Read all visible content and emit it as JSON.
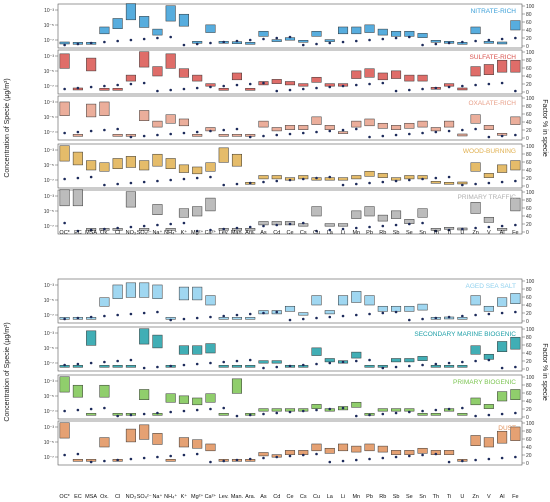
{
  "figure": {
    "left_ylabel": "Concentration of Specie (µg/m³)",
    "right_ylabel": "Factor % in specie"
  },
  "species": [
    "OC*",
    "EC",
    "MSA",
    "Ox.",
    "Cl",
    "NO3",
    "SO4",
    "Na",
    "NH4",
    "K",
    "Mg",
    "Ca",
    "Lev.",
    "Man.",
    "Ara.",
    "As",
    "Cd",
    "Ce",
    "Cs",
    "Cu",
    "La",
    "Li",
    "Mn",
    "Pb",
    "Rb",
    "Sb",
    "Se",
    "Sn",
    "Th",
    "Ti",
    "U",
    "Zn",
    "V",
    "Al",
    "Fe"
  ],
  "species_labels": [
    "OC*",
    "EC",
    "MSA",
    "Ox.",
    "Cl",
    "NO₃",
    "SO₄²⁻",
    "Na⁺",
    "NH₄⁺",
    "K⁺",
    "Mg²⁺",
    "Ca²⁺",
    "Lev.",
    "Man.",
    "Ara.",
    "As",
    "Cd",
    "Ce",
    "Cs",
    "Cu",
    "La",
    "Li",
    "Mn",
    "Pb",
    "Rb",
    "Sb",
    "Se",
    "Sn",
    "Th",
    "Ti",
    "U",
    "Zn",
    "V",
    "Al",
    "Fe"
  ],
  "axis": {
    "conc_ticks": [
      "10⁻³",
      "10⁻⁵",
      "10⁻⁷"
    ],
    "pct_ticks": [
      "100",
      "80",
      "60",
      "40",
      "20",
      "0"
    ]
  },
  "chart_data": [
    {
      "type": "bar",
      "title": "NITRATE-RICH",
      "color": "#3a9fd8",
      "categories": [
        "OC*",
        "EC",
        "MSA",
        "Ox.",
        "Cl",
        "NO3",
        "SO4",
        "Na",
        "NH4",
        "K",
        "Mg",
        "Ca",
        "Lev.",
        "Man.",
        "Ara.",
        "As",
        "Cd",
        "Ce",
        "Cs",
        "Cu",
        "La",
        "Li",
        "Mn",
        "Pb",
        "Rb",
        "Sb",
        "Se",
        "Sn",
        "Th",
        "Ti",
        "U",
        "Zn",
        "V",
        "Al",
        "Fe"
      ],
      "series": [
        {
          "values": [
            3,
            2,
            2,
            40,
            60,
            95,
            65,
            35,
            90,
            70,
            5,
            45,
            5,
            4,
            2,
            30,
            10,
            15,
            8,
            30,
            10,
            40,
            40,
            45,
            35,
            30,
            30,
            25,
            8,
            5,
            2,
            40,
            5,
            3,
            55
          ]
        }
      ],
      "ylabel": "Concentration of Specie (µg/m³)",
      "ylim": [
        0,
        100
      ]
    },
    {
      "type": "bar",
      "title": "SULFATE-RICH",
      "color": "#d9534f",
      "categories": [
        "OC*",
        "EC",
        "MSA",
        "Ox.",
        "Cl",
        "NO3",
        "SO4",
        "Na",
        "NH4",
        "K",
        "Mg",
        "Ca",
        "Lev.",
        "Man.",
        "Ara.",
        "As",
        "Cd",
        "Ce",
        "Cs",
        "Cu",
        "La",
        "Li",
        "Mn",
        "Pb",
        "Rb",
        "Sb",
        "Se",
        "Sn",
        "Th",
        "Ti",
        "U",
        "Zn",
        "V",
        "Al",
        "Fe"
      ],
      "series": [
        {
          "values": [
            85,
            3,
            75,
            2,
            2,
            35,
            90,
            55,
            85,
            50,
            35,
            15,
            2,
            40,
            2,
            20,
            25,
            20,
            15,
            30,
            15,
            15,
            45,
            50,
            40,
            45,
            35,
            35,
            5,
            15,
            3,
            55,
            60,
            70,
            70
          ]
        }
      ],
      "ylim": [
        0,
        100
      ]
    },
    {
      "type": "bar",
      "title": "OXALATE-RICH",
      "color": "#e8a08a",
      "categories": [
        "OC*",
        "EC",
        "MSA",
        "Ox.",
        "Cl",
        "NO3",
        "SO4",
        "Na",
        "NH4",
        "K",
        "Mg",
        "Ca",
        "Lev.",
        "Man.",
        "Ara.",
        "As",
        "Cd",
        "Ce",
        "Cs",
        "Cu",
        "La",
        "Li",
        "Mn",
        "Pb",
        "Rb",
        "Sb",
        "Se",
        "Sn",
        "Th",
        "Ti",
        "U",
        "Zn",
        "V",
        "Al",
        "Fe"
      ],
      "series": [
        {
          "values": [
            80,
            2,
            75,
            80,
            2,
            2,
            60,
            35,
            50,
            40,
            2,
            20,
            2,
            2,
            2,
            35,
            20,
            25,
            25,
            45,
            25,
            10,
            35,
            40,
            30,
            25,
            30,
            35,
            20,
            35,
            3,
            50,
            25,
            5,
            45
          ]
        }
      ],
      "ylim": [
        0,
        100
      ]
    },
    {
      "type": "bar",
      "title": "WOOD-BURNING",
      "color": "#e0b050",
      "categories": [
        "OC*",
        "EC",
        "MSA",
        "Ox.",
        "Cl",
        "NO3",
        "SO4",
        "Na",
        "NH4",
        "K",
        "Mg",
        "Ca",
        "Lev.",
        "Man.",
        "Ara.",
        "As",
        "Cd",
        "Ce",
        "Cs",
        "Cu",
        "La",
        "Li",
        "Mn",
        "Pb",
        "Rb",
        "Sb",
        "Se",
        "Sn",
        "Th",
        "Ti",
        "U",
        "Zn",
        "V",
        "Al",
        "Fe"
      ],
      "series": [
        {
          "values": [
            90,
            75,
            55,
            50,
            60,
            65,
            55,
            70,
            60,
            45,
            40,
            50,
            85,
            70,
            2,
            20,
            20,
            15,
            20,
            15,
            15,
            15,
            20,
            30,
            25,
            15,
            20,
            20,
            5,
            2,
            3,
            50,
            25,
            45,
            55
          ]
        }
      ],
      "ylim": [
        0,
        100
      ]
    },
    {
      "type": "bar",
      "title": "PRIMARY TRAFFIC",
      "color": "#b0b0b0",
      "categories": [
        "OC*",
        "EC",
        "MSA",
        "Ox.",
        "Cl",
        "NO3",
        "SO4",
        "Na",
        "NH4",
        "K",
        "Mg",
        "Ca",
        "Lev.",
        "Man.",
        "Ara.",
        "As",
        "Cd",
        "Ce",
        "Cs",
        "Cu",
        "La",
        "Li",
        "Mn",
        "Pb",
        "Rb",
        "Sb",
        "Se",
        "Sn",
        "Th",
        "Ti",
        "U",
        "Zn",
        "V",
        "Al",
        "Fe"
      ],
      "series": [
        {
          "values": [
            95,
            95,
            2,
            2,
            2,
            90,
            2,
            60,
            2,
            50,
            55,
            75,
            2,
            2,
            2,
            20,
            20,
            20,
            15,
            55,
            15,
            15,
            45,
            55,
            35,
            45,
            25,
            50,
            2,
            5,
            3,
            65,
            30,
            2,
            75
          ]
        }
      ],
      "ylim": [
        0,
        100
      ]
    },
    {
      "type": "bar",
      "title": "AGED SEA SALT",
      "color": "#8fd0ee",
      "categories": [
        "OC*",
        "EC",
        "MSA",
        "Ox.",
        "Cl",
        "NO3",
        "SO4",
        "Na",
        "NH4",
        "K",
        "Mg",
        "Ca",
        "Lev.",
        "Man.",
        "Ara.",
        "As",
        "Cd",
        "Ce",
        "Cs",
        "Cu",
        "La",
        "Li",
        "Mn",
        "Pb",
        "Rb",
        "Sb",
        "Se",
        "Sn",
        "Th",
        "Ti",
        "U",
        "Zn",
        "V",
        "Al",
        "Fe"
      ],
      "series": [
        {
          "values": [
            2,
            2,
            2,
            50,
            80,
            85,
            85,
            80,
            2,
            75,
            75,
            55,
            2,
            2,
            2,
            20,
            20,
            30,
            15,
            55,
            20,
            55,
            65,
            55,
            30,
            30,
            30,
            35,
            2,
            3,
            2,
            55,
            30,
            50,
            60
          ]
        }
      ],
      "ylim": [
        0,
        100
      ]
    },
    {
      "type": "bar",
      "title": "SECONDARY MARINE BIOGENIC",
      "color": "#20a0a8",
      "categories": [
        "OC*",
        "EC",
        "MSA",
        "Ox.",
        "Cl",
        "NO3",
        "SO4",
        "Na",
        "NH4",
        "K",
        "Mg",
        "Ca",
        "Lev.",
        "Man.",
        "Ara.",
        "As",
        "Cd",
        "Ce",
        "Cs",
        "Cu",
        "La",
        "Li",
        "Mn",
        "Pb",
        "Rb",
        "Sb",
        "Se",
        "Sn",
        "Th",
        "Ti",
        "U",
        "Zn",
        "V",
        "Al",
        "Fe"
      ],
      "series": [
        {
          "values": [
            2,
            2,
            85,
            2,
            2,
            2,
            90,
            75,
            2,
            50,
            50,
            55,
            2,
            2,
            2,
            15,
            15,
            2,
            2,
            45,
            20,
            15,
            35,
            2,
            2,
            20,
            20,
            25,
            2,
            2,
            2,
            50,
            30,
            60,
            70
          ]
        }
      ],
      "ylim": [
        0,
        100
      ]
    },
    {
      "type": "bar",
      "title": "PRIMARY BIOGENIC",
      "color": "#7cc552",
      "categories": [
        "OC*",
        "EC",
        "MSA",
        "Ox.",
        "Cl",
        "NO3",
        "SO4",
        "Na",
        "NH4",
        "K",
        "Mg",
        "Ca",
        "Lev.",
        "Man.",
        "Ara.",
        "As",
        "Cd",
        "Ce",
        "Cs",
        "Cu",
        "La",
        "Li",
        "Mn",
        "Pb",
        "Rb",
        "Sb",
        "Se",
        "Sn",
        "Th",
        "Ti",
        "U",
        "Zn",
        "V",
        "Al",
        "Fe"
      ],
      "series": [
        {
          "values": [
            90,
            70,
            2,
            70,
            2,
            2,
            60,
            2,
            50,
            45,
            40,
            50,
            2,
            85,
            2,
            15,
            15,
            15,
            15,
            25,
            15,
            20,
            30,
            2,
            15,
            15,
            15,
            2,
            2,
            15,
            2,
            40,
            25,
            55,
            60
          ]
        }
      ],
      "ylim": [
        0,
        100
      ]
    },
    {
      "type": "bar",
      "title": "DUST",
      "color": "#e0905a",
      "categories": [
        "OC*",
        "EC",
        "MSA",
        "Ox.",
        "Cl",
        "NO3",
        "SO4",
        "Na",
        "NH4",
        "K",
        "Mg",
        "Ca",
        "Lev.",
        "Man.",
        "Ara.",
        "As",
        "Cd",
        "Ce",
        "Cs",
        "Cu",
        "La",
        "Li",
        "Mn",
        "Pb",
        "Rb",
        "Sb",
        "Se",
        "Sn",
        "Th",
        "Ti",
        "U",
        "Zn",
        "V",
        "Al",
        "Fe"
      ],
      "series": [
        {
          "values": [
            90,
            2,
            2,
            55,
            2,
            75,
            85,
            65,
            2,
            55,
            50,
            40,
            2,
            2,
            2,
            20,
            15,
            25,
            25,
            40,
            30,
            40,
            35,
            40,
            35,
            25,
            25,
            30,
            25,
            25,
            2,
            60,
            55,
            70,
            80
          ]
        }
      ],
      "ylim": [
        0,
        100
      ]
    }
  ]
}
